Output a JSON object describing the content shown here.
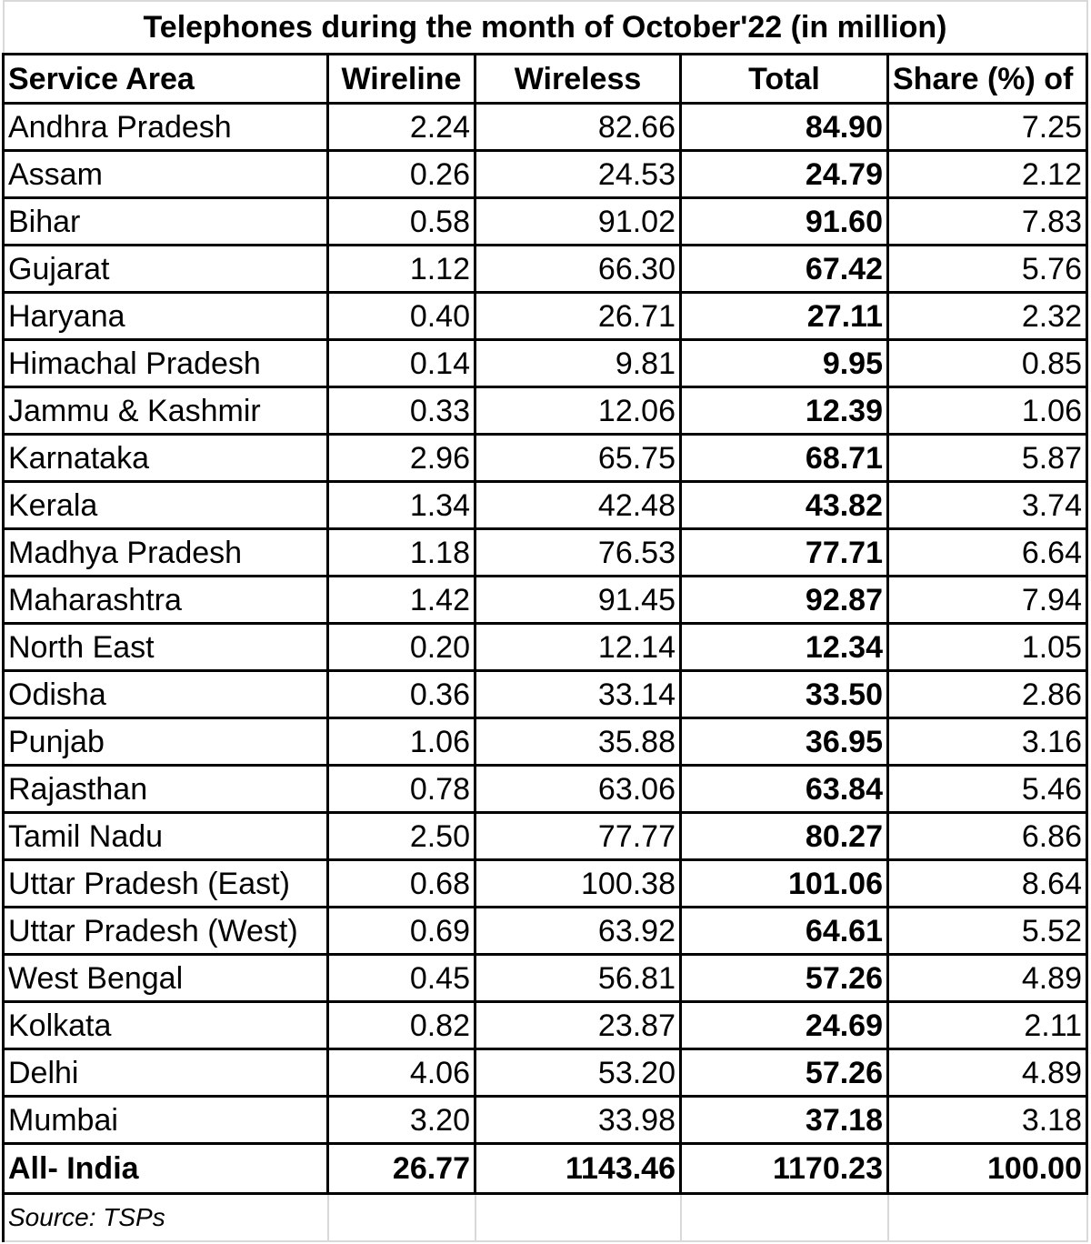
{
  "title": "Telephones during the month of October'22 (in million)",
  "columns": [
    "Service Area",
    "Wireline",
    "Wireless",
    "Total",
    "Share (%) of"
  ],
  "rows": [
    {
      "area": "Andhra Pradesh",
      "wireline": "2.24",
      "wireless": "82.66",
      "total": "84.90",
      "share": "7.25"
    },
    {
      "area": "Assam",
      "wireline": "0.26",
      "wireless": "24.53",
      "total": "24.79",
      "share": "2.12"
    },
    {
      "area": "Bihar",
      "wireline": "0.58",
      "wireless": "91.02",
      "total": "91.60",
      "share": "7.83"
    },
    {
      "area": "Gujarat",
      "wireline": "1.12",
      "wireless": "66.30",
      "total": "67.42",
      "share": "5.76"
    },
    {
      "area": "Haryana",
      "wireline": "0.40",
      "wireless": "26.71",
      "total": "27.11",
      "share": "2.32"
    },
    {
      "area": "Himachal Pradesh",
      "wireline": "0.14",
      "wireless": "9.81",
      "total": "9.95",
      "share": "0.85"
    },
    {
      "area": "Jammu & Kashmir",
      "wireline": "0.33",
      "wireless": "12.06",
      "total": "12.39",
      "share": "1.06"
    },
    {
      "area": "Karnataka",
      "wireline": "2.96",
      "wireless": "65.75",
      "total": "68.71",
      "share": "5.87"
    },
    {
      "area": "Kerala",
      "wireline": "1.34",
      "wireless": "42.48",
      "total": "43.82",
      "share": "3.74"
    },
    {
      "area": "Madhya Pradesh",
      "wireline": "1.18",
      "wireless": "76.53",
      "total": "77.71",
      "share": "6.64"
    },
    {
      "area": "Maharashtra",
      "wireline": "1.42",
      "wireless": "91.45",
      "total": "92.87",
      "share": "7.94"
    },
    {
      "area": "North East",
      "wireline": "0.20",
      "wireless": "12.14",
      "total": "12.34",
      "share": "1.05"
    },
    {
      "area": "Odisha",
      "wireline": "0.36",
      "wireless": "33.14",
      "total": "33.50",
      "share": "2.86"
    },
    {
      "area": "Punjab",
      "wireline": "1.06",
      "wireless": "35.88",
      "total": "36.95",
      "share": "3.16"
    },
    {
      "area": "Rajasthan",
      "wireline": "0.78",
      "wireless": "63.06",
      "total": "63.84",
      "share": "5.46"
    },
    {
      "area": "Tamil Nadu",
      "wireline": "2.50",
      "wireless": "77.77",
      "total": "80.27",
      "share": "6.86"
    },
    {
      "area": "Uttar Pradesh (East)",
      "wireline": "0.68",
      "wireless": "100.38",
      "total": "101.06",
      "share": "8.64"
    },
    {
      "area": "Uttar Pradesh (West)",
      "wireline": "0.69",
      "wireless": "63.92",
      "total": "64.61",
      "share": "5.52"
    },
    {
      "area": "West Bengal",
      "wireline": "0.45",
      "wireless": "56.81",
      "total": "57.26",
      "share": "4.89"
    },
    {
      "area": "Kolkata",
      "wireline": "0.82",
      "wireless": "23.87",
      "total": "24.69",
      "share": "2.11"
    },
    {
      "area": "Delhi",
      "wireline": "4.06",
      "wireless": "53.20",
      "total": "57.26",
      "share": "4.89"
    },
    {
      "area": "Mumbai",
      "wireline": "3.20",
      "wireless": "33.98",
      "total": "37.18",
      "share": "3.18"
    }
  ],
  "total_row": {
    "area": "All- India",
    "wireline": "26.77",
    "wireless": "1143.46",
    "total": "1170.23",
    "share": "100.00"
  },
  "source": "Source: TSPs"
}
